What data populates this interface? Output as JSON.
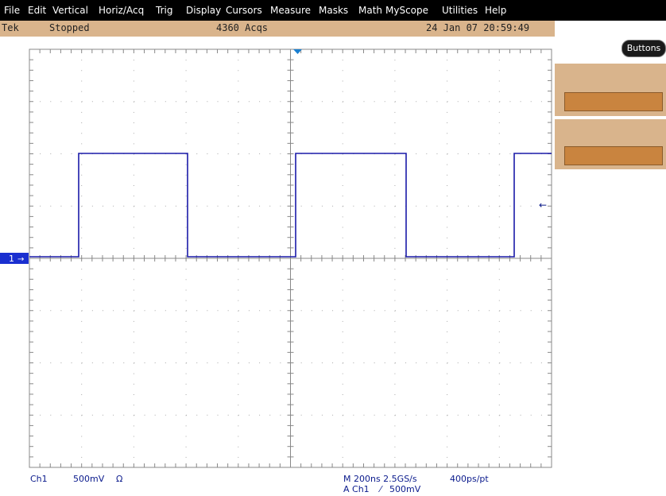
{
  "menu": [
    "File",
    "Edit",
    "Vertical",
    "Horiz/Acq",
    "Trig",
    "Display",
    "Cursors",
    "Measure",
    "Masks",
    "Math",
    "MyScope",
    "Utilities",
    "Help"
  ],
  "status": {
    "brand": "Tek",
    "state": "Stopped",
    "acquisitions": "4360 Acqs",
    "timestamp": "24 Jan 07 20:59:49"
  },
  "side_panel": {
    "button": "Buttons"
  },
  "channel_marker": "1",
  "readout": {
    "channel": "Ch1",
    "scale": "500mV",
    "coupling": "Ω",
    "timebase": "M 200ns 2.5GS/s",
    "resolution": "400ps/pt",
    "trigger_source": "A Ch1",
    "trigger_level": "500mV"
  }
}
